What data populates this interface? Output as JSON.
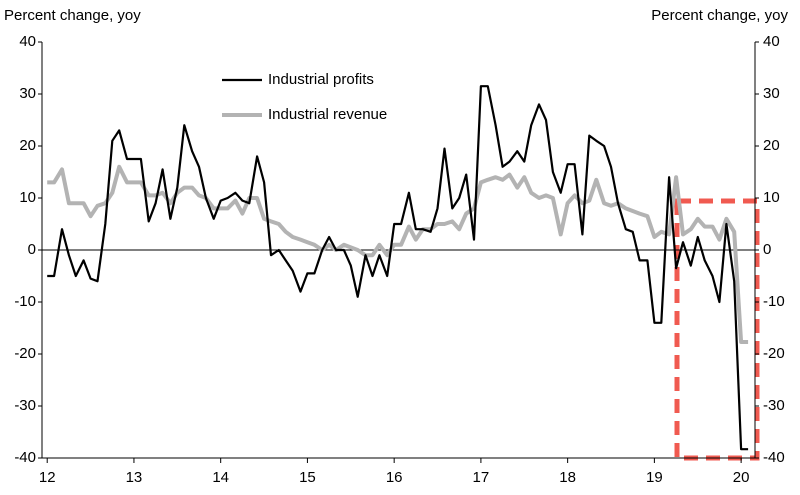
{
  "chart_data": {
    "type": "line",
    "y_label": "Percent change, yoy",
    "y2_label": "Percent change, yoy",
    "x": [
      12,
      12.08,
      12.17,
      12.25,
      12.33,
      12.42,
      12.5,
      12.58,
      12.67,
      12.75,
      12.83,
      12.92,
      13,
      13.08,
      13.17,
      13.25,
      13.33,
      13.42,
      13.5,
      13.58,
      13.67,
      13.75,
      13.83,
      13.92,
      14,
      14.08,
      14.17,
      14.25,
      14.33,
      14.42,
      14.5,
      14.58,
      14.67,
      14.75,
      14.83,
      14.92,
      15,
      15.08,
      15.17,
      15.25,
      15.33,
      15.42,
      15.5,
      15.58,
      15.67,
      15.75,
      15.83,
      15.92,
      16,
      16.08,
      16.17,
      16.25,
      16.33,
      16.42,
      16.5,
      16.58,
      16.67,
      16.75,
      16.83,
      16.92,
      17,
      17.08,
      17.17,
      17.25,
      17.33,
      17.42,
      17.5,
      17.58,
      17.67,
      17.75,
      17.83,
      17.92,
      18,
      18.08,
      18.17,
      18.25,
      18.33,
      18.42,
      18.5,
      18.58,
      18.67,
      18.75,
      18.83,
      18.92,
      19,
      19.08,
      19.17,
      19.25,
      19.33,
      19.42,
      19.5,
      19.58,
      19.67,
      19.75,
      19.83,
      19.92,
      20,
      20.08
    ],
    "series": [
      {
        "name": "Industrial profits",
        "color": "#000000",
        "values": [
          -5,
          -5,
          4,
          -1,
          -5,
          -2,
          -5.5,
          -6,
          5,
          21,
          23,
          17.5,
          17.5,
          17.5,
          5.5,
          9,
          15.5,
          6,
          12,
          24,
          19,
          16,
          10,
          6,
          9.5,
          10,
          11,
          9.5,
          9,
          18,
          13,
          -1,
          0,
          -2,
          -4,
          -8,
          -4.5,
          -4.5,
          0,
          2.5,
          0,
          0,
          -3,
          -9,
          -1,
          -5,
          -1,
          -5,
          5,
          5,
          11,
          4,
          4,
          3.5,
          8,
          19.5,
          8,
          10,
          14.5,
          2,
          31.5,
          31.5,
          24,
          16,
          17,
          19,
          17,
          24,
          28,
          25,
          15,
          11,
          16.5,
          16.5,
          3,
          22,
          21,
          20,
          16,
          9,
          4,
          3.5,
          -2,
          -2,
          -14,
          -14,
          14,
          -3.5,
          1.5,
          -3,
          2.5,
          -2,
          -5,
          -10,
          5,
          -6,
          -38.3,
          -38.3
        ]
      },
      {
        "name": "Industrial revenue",
        "color": "#b3b3b3",
        "values": [
          13,
          13,
          15.5,
          9,
          9,
          9,
          6.5,
          8.5,
          9,
          11,
          16,
          13,
          13,
          13,
          10.5,
          10.5,
          11,
          9,
          11,
          12,
          12,
          10.5,
          10,
          8,
          8,
          8,
          9.5,
          7,
          10,
          10,
          6,
          5.5,
          5,
          3.5,
          2.5,
          2,
          1.5,
          1,
          0,
          1,
          0,
          1,
          0.5,
          0,
          -1,
          -1,
          1,
          -1,
          1,
          1,
          4.5,
          2,
          4,
          4,
          5,
          5,
          5.5,
          4,
          7,
          8,
          13,
          13.5,
          14,
          13.5,
          14.5,
          12,
          14,
          11,
          10,
          10.5,
          10,
          3,
          9,
          10.5,
          9,
          9.5,
          13.5,
          9,
          8.5,
          9,
          8,
          7.5,
          7,
          6.5,
          2.5,
          3.5,
          3,
          14,
          3,
          4,
          6,
          4.5,
          4.5,
          2,
          6,
          3.5,
          -17.7,
          -17.7
        ]
      }
    ],
    "xlim": [
      11.94,
      20.16
    ],
    "xticks": [
      12,
      13,
      14,
      15,
      16,
      17,
      18,
      19,
      20
    ],
    "ylim": [
      -40,
      40
    ],
    "yticks": [
      40,
      30,
      20,
      10,
      0,
      -10,
      -20,
      -30,
      -40
    ],
    "y2lim": [
      -40,
      40
    ],
    "y2ticks": [
      40,
      30,
      20,
      10,
      0,
      -10,
      -20,
      -30,
      -40
    ],
    "grid": false,
    "legend": "upper left"
  }
}
